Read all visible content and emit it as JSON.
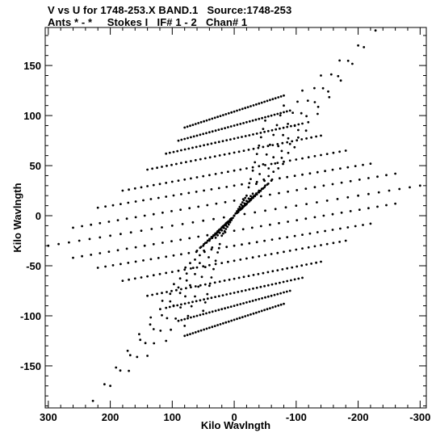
{
  "chart_data": {
    "type": "scatter",
    "title": "V vs U for 1748-253.X BAND.1   Source:1748-253",
    "subtitle": "Ants * - *     Stokes I   IF# 1 - 2   Chan# 1",
    "xlabel": "Kilo Wavlngth",
    "ylabel": "Kilo Wavlngth",
    "xlim": [
      305,
      -310
    ],
    "ylim": [
      -192,
      188
    ],
    "x_ticks": [
      300,
      200,
      100,
      0,
      -100,
      -200,
      -300
    ],
    "x_tick_labels": [
      "300",
      "200",
      "100",
      "0",
      "-100",
      "-200",
      "-300"
    ],
    "y_ticks": [
      -150,
      -100,
      -50,
      0,
      50,
      100,
      150
    ],
    "y_tick_labels": [
      "-150",
      "-100",
      "-50",
      "0",
      "50",
      "100",
      "150"
    ],
    "grid": false,
    "marker": "dot",
    "color": "#000000",
    "track_families": [
      {
        "name": "east-west",
        "tracks": [
          {
            "u": [
              -80,
              0,
              80
            ],
            "v": [
              120,
              104,
              88
            ]
          },
          {
            "u": [
              -90,
              0,
              90
            ],
            "v": [
              105,
              90,
              75
            ]
          },
          {
            "u": [
              -110,
              0,
              110
            ],
            "v": [
              92,
              77,
              62
            ]
          },
          {
            "u": [
              -140,
              0,
              140
            ],
            "v": [
              80,
              63,
              46
            ]
          },
          {
            "u": [
              -180,
              0,
              180
            ],
            "v": [
              65,
              45,
              25
            ]
          },
          {
            "u": [
              -220,
              0,
              220
            ],
            "v": [
              52,
              30,
              8
            ]
          },
          {
            "u": [
              -260,
              0,
              260
            ],
            "v": [
              42,
              15,
              -12
            ]
          },
          {
            "u": [
              -300,
              0,
              300
            ],
            "v": [
              30,
              0,
              -30
            ]
          },
          {
            "u": [
              -260,
              0,
              260
            ],
            "v": [
              12,
              -15,
              -42
            ]
          },
          {
            "u": [
              -220,
              0,
              220
            ],
            "v": [
              -8,
              -30,
              -52
            ]
          },
          {
            "u": [
              -180,
              0,
              180
            ],
            "v": [
              -25,
              -45,
              -65
            ]
          },
          {
            "u": [
              -140,
              0,
              140
            ],
            "v": [
              -46,
              -63,
              -80
            ]
          },
          {
            "u": [
              -110,
              0,
              110
            ],
            "v": [
              -62,
              -77,
              -92
            ]
          },
          {
            "u": [
              -90,
              0,
              90
            ],
            "v": [
              -75,
              -90,
              -105
            ]
          },
          {
            "u": [
              -80,
              0,
              80
            ],
            "v": [
              -88,
              -104,
              -120
            ]
          }
        ]
      },
      {
        "name": "north-south",
        "tracks": [
          {
            "u": [
              -228,
              -60,
              0,
              60,
              228
            ],
            "v": [
              185,
              35,
              0,
              -35,
              -185
            ]
          },
          {
            "u": [
              -200,
              -55,
              0,
              55,
              200
            ],
            "v": [
              170,
              32,
              0,
              -32,
              -170
            ]
          },
          {
            "u": [
              -170,
              -50,
              0,
              50,
              170
            ],
            "v": [
              155,
              30,
              0,
              -30,
              -155
            ]
          },
          {
            "u": [
              -140,
              -45,
              0,
              45,
              140
            ],
            "v": [
              140,
              27,
              0,
              -27,
              -140
            ]
          },
          {
            "u": [
              -110,
              -40,
              0,
              40,
              110
            ],
            "v": [
              125,
              25,
              0,
              -25,
              -125
            ]
          },
          {
            "u": [
              -80,
              -30,
              0,
              30,
              80
            ],
            "v": [
              110,
              22,
              0,
              -22,
              -110
            ]
          },
          {
            "u": [
              -50,
              -20,
              0,
              20,
              50
            ],
            "v": [
              95,
              20,
              0,
              -20,
              -95
            ]
          }
        ]
      }
    ]
  }
}
